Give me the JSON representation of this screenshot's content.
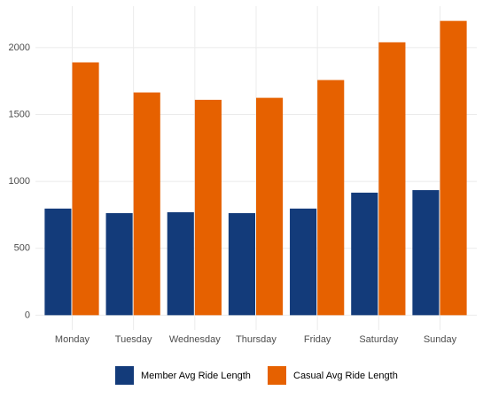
{
  "chart_data": {
    "type": "bar",
    "categories": [
      "Monday",
      "Tuesday",
      "Wednesday",
      "Thursday",
      "Friday",
      "Saturday",
      "Sunday"
    ],
    "series": [
      {
        "name": "Member Avg Ride Length",
        "color": "#133b7a",
        "values": [
          797,
          763,
          770,
          763,
          797,
          916,
          935
        ]
      },
      {
        "name": "Casual Avg Ride Length",
        "color": "#e66100",
        "values": [
          1890,
          1665,
          1610,
          1625,
          1758,
          2040,
          2200
        ]
      }
    ],
    "ylim": [
      -110,
      2310
    ],
    "yticks": [
      0,
      500,
      1000,
      1500,
      2000
    ],
    "grid": true,
    "legend": "bottom"
  }
}
